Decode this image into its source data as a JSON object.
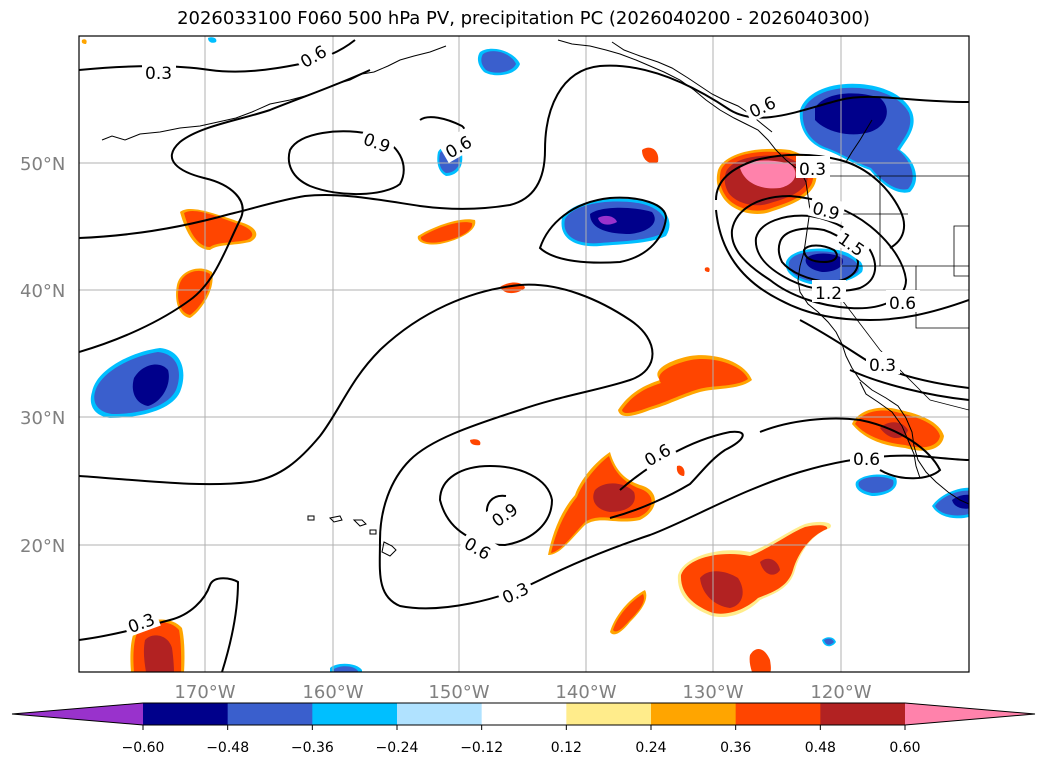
{
  "title": "2026033100 F060 500 hPa PV, precipitation PC (2026040200 - 2026040300)",
  "axes": {
    "lat_ticks": [
      "50°N",
      "40°N",
      "30°N",
      "20°N"
    ],
    "lon_ticks": [
      "170°W",
      "160°W",
      "150°W",
      "140°W",
      "130°W",
      "120°W"
    ]
  },
  "contour_labels": [
    "0.3",
    "0.6",
    "0.9",
    "0.6",
    "0.6",
    "0.3",
    "0.9",
    "1.5",
    "1.2",
    "0.6",
    "0.3",
    "0.6",
    "0.6",
    "0.9",
    "0.6",
    "0.3",
    "0.3"
  ],
  "colorbar": {
    "ticks": [
      "−0.60",
      "−0.48",
      "−0.36",
      "−0.24",
      "−0.12",
      "0.12",
      "0.24",
      "0.36",
      "0.48",
      "0.60"
    ],
    "colors": [
      "#9932cc",
      "#00008b",
      "#3a5fcd",
      "#00bfff",
      "#b0e2ff",
      "#ffffff",
      "#ffec8b",
      "#ffa500",
      "#ff4500",
      "#b22222",
      "#ff82ab"
    ]
  },
  "palette": {
    "purple": "#9932cc",
    "navy": "#00008b",
    "blue": "#3a5fcd",
    "cyan": "#00bfff",
    "lightblue": "#b0e2ff",
    "yellow": "#ffec8b",
    "orange": "#ffa500",
    "redorange": "#ff4500",
    "firebrick": "#b22222",
    "pink": "#ff82ab"
  }
}
